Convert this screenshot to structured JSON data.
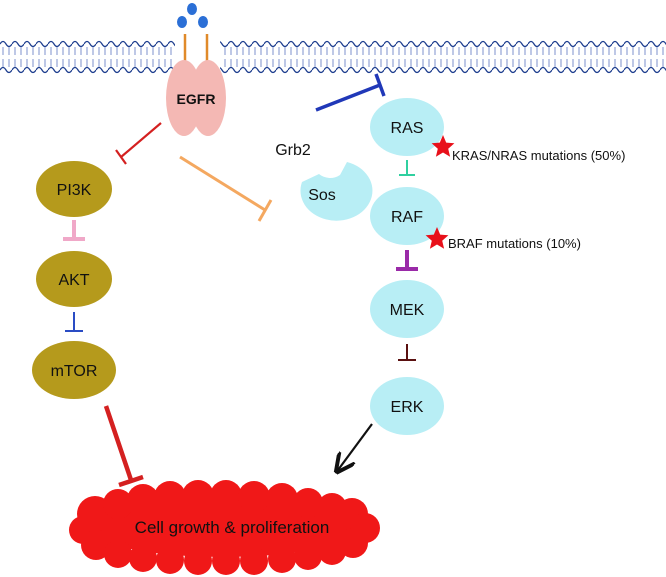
{
  "receptor": {
    "label": "EGFR"
  },
  "adaptor": {
    "grb2": "Grb2",
    "sos": "Sos"
  },
  "pi3k_pathway": {
    "nodes": [
      "PI3K",
      "AKT",
      "mTOR"
    ]
  },
  "mapk_pathway": {
    "nodes": [
      "RAS",
      "RAF",
      "MEK",
      "ERK"
    ]
  },
  "mutations": {
    "ras": "KRAS/NRAS mutations (50%)",
    "raf": "BRAF mutations (10%)"
  },
  "outcome": {
    "label": "Cell growth & proliferation"
  },
  "colors": {
    "membrane": "#1f3f8f",
    "egfr": "#f4b8b4",
    "ligand": "#2b6fd6",
    "pi3k_node": "#b59a1c",
    "mapk_node": "#b8eef5",
    "outcome": "#f01818",
    "star": "#e8101a",
    "egfr_to_pi3k": "#d42020",
    "egfr_to_sos": "#f4a860",
    "sos_to_ras": "#2038b8",
    "pi3k_to_akt": "#f0a8c8",
    "akt_to_mtor": "#2a4cc4",
    "mtor_to_outcome": "#d42020",
    "ras_to_raf": "#30d0a0",
    "raf_to_mek": "#9a2aa8",
    "mek_to_erk": "#5a1010",
    "erk_to_outcome": "#111111"
  }
}
